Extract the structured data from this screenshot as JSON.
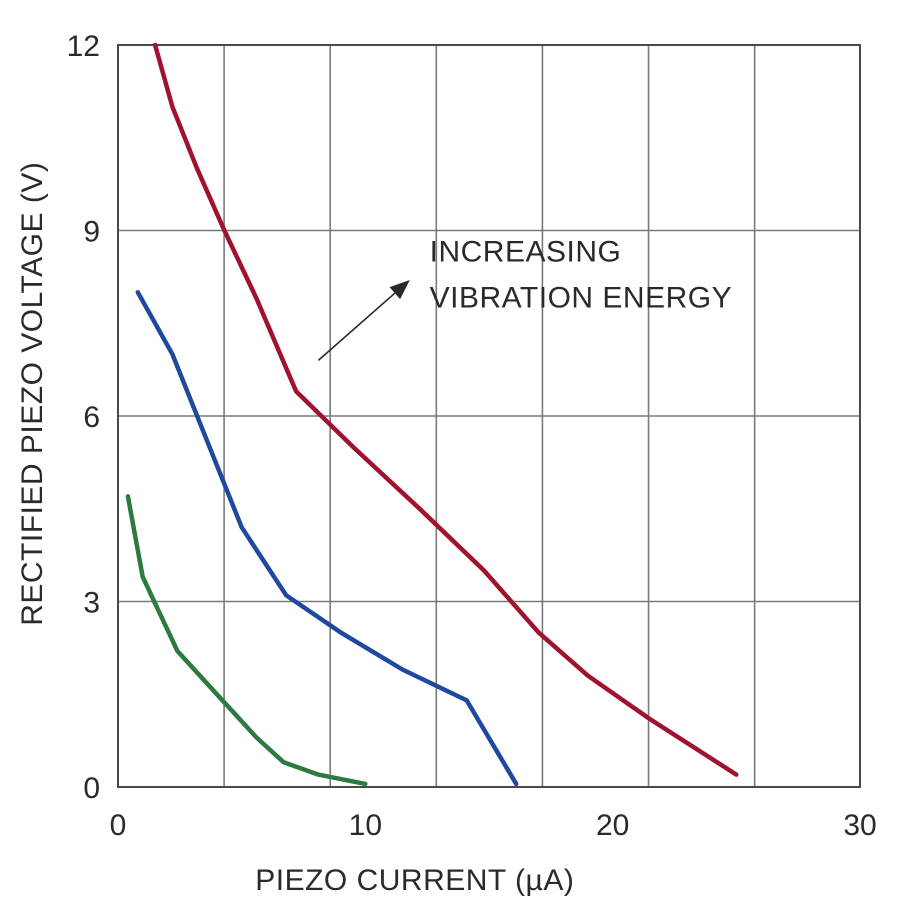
{
  "chart_data": {
    "type": "line",
    "xlabel": "PIEZO CURRENT (µA)",
    "ylabel": "RECTIFIED PIEZO VOLTAGE (V)",
    "xlim": [
      0,
      30
    ],
    "ylim": [
      0,
      12
    ],
    "x_ticks": [
      0,
      10,
      20,
      30
    ],
    "y_ticks": [
      0,
      3,
      6,
      9,
      12
    ],
    "x_tick_labels": [
      "0",
      "10",
      "20",
      "30"
    ],
    "y_tick_labels": [
      "0",
      "3",
      "6",
      "9",
      "12"
    ],
    "grid": {
      "x_minor_step": 4.29,
      "y_step": 3,
      "enabled": true
    },
    "annotation": {
      "lines": [
        "INCREASING",
        "VIBRATION ENERGY"
      ],
      "arrow_from": {
        "x": 8.1,
        "y": 6.9
      },
      "arrow_to": {
        "x": 11.8,
        "y": 8.2
      },
      "text_anchor": {
        "x": 12.6,
        "y": 8.5
      }
    },
    "series": [
      {
        "color": "#a0122e",
        "x": [
          1.5,
          2.2,
          3.2,
          4.3,
          5.6,
          7.2,
          9.5,
          12.2,
          14.8,
          17.0,
          19.0,
          21.5,
          25.0
        ],
        "y": [
          12.0,
          11.0,
          10.0,
          9.0,
          7.9,
          6.4,
          5.5,
          4.5,
          3.5,
          2.5,
          1.8,
          1.1,
          0.2
        ]
      },
      {
        "color": "#1f48a0",
        "x": [
          0.8,
          2.2,
          3.4,
          4.6,
          5.0,
          6.8,
          9.0,
          11.5,
          14.1,
          16.1
        ],
        "y": [
          8.0,
          7.0,
          5.8,
          4.6,
          4.2,
          3.1,
          2.5,
          1.9,
          1.4,
          0.05
        ]
      },
      {
        "color": "#2c7a40",
        "x": [
          0.4,
          1.0,
          2.4,
          4.0,
          5.6,
          6.7,
          8.1,
          10.0
        ],
        "y": [
          4.7,
          3.4,
          2.2,
          1.5,
          0.8,
          0.4,
          0.2,
          0.05
        ]
      }
    ]
  }
}
